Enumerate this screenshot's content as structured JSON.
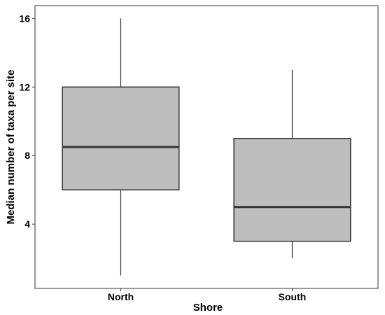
{
  "chart_data": {
    "type": "box",
    "title": "",
    "xlabel": "Shore",
    "ylabel": "Median number of taxa per site",
    "categories": [
      "North",
      "South"
    ],
    "boxes": [
      {
        "category": "North",
        "min": 1,
        "q1": 6,
        "median": 8.5,
        "q3": 12,
        "max": 16
      },
      {
        "category": "South",
        "min": 2,
        "q1": 3,
        "median": 5,
        "q3": 9,
        "max": 13
      }
    ],
    "y_ticks": [
      4,
      8,
      12,
      16
    ],
    "ylim": [
      0.25,
      16.75
    ],
    "grid": false,
    "legend": "none",
    "colors": {
      "box_fill": "#bebebe",
      "box_stroke": "#333333",
      "axis": "#333333"
    }
  }
}
